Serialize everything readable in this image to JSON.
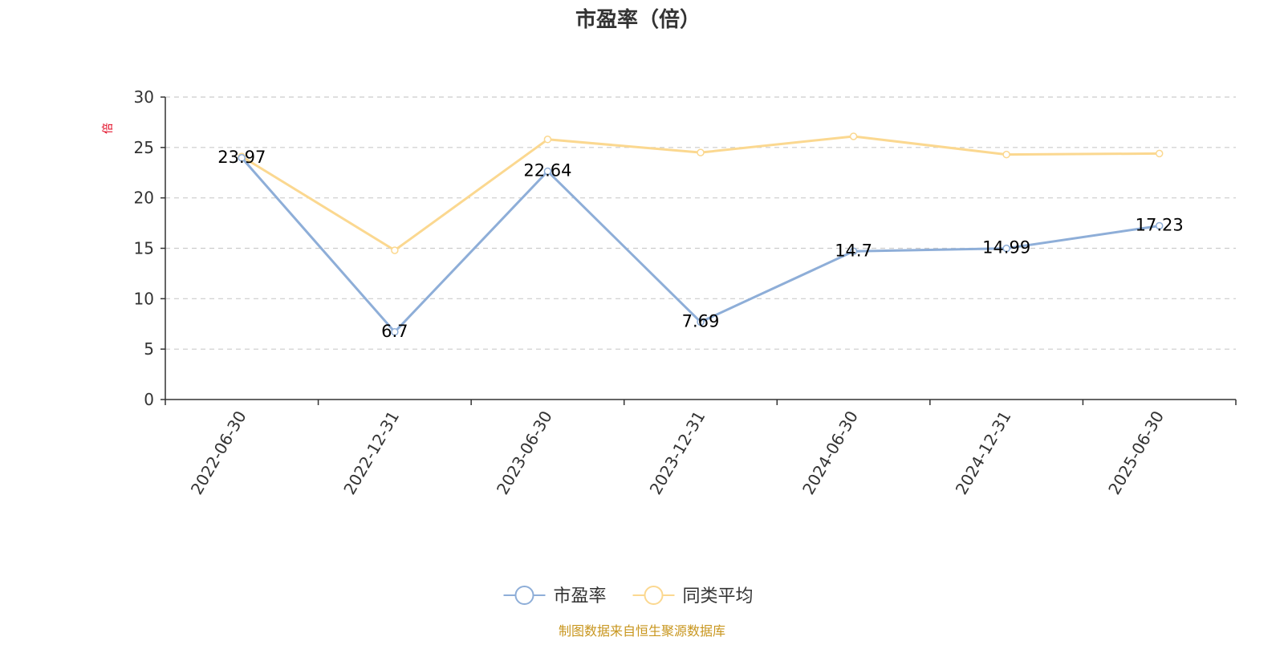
{
  "chart_data": {
    "type": "line",
    "title": "市盈率（倍）",
    "ylabel": "倍",
    "xlabel": "",
    "categories": [
      "2022-06-30",
      "2022-12-31",
      "2023-06-30",
      "2023-12-31",
      "2024-06-30",
      "2024-12-31",
      "2025-06-30"
    ],
    "series": [
      {
        "name": "市盈率",
        "values": [
          23.97,
          6.7,
          22.64,
          7.69,
          14.7,
          14.99,
          17.23
        ],
        "labels": [
          "23.97",
          "6.7",
          "22.64",
          "7.69",
          "14.7",
          "14.99",
          "17.23"
        ],
        "show_labels": true,
        "color": "#8eaed8"
      },
      {
        "name": "同类平均",
        "values": [
          24.1,
          14.8,
          25.8,
          24.5,
          26.1,
          24.3,
          24.4
        ],
        "show_labels": false,
        "color": "#fbd890"
      }
    ],
    "ylim": [
      0,
      30
    ],
    "yticks": [
      "0",
      "5",
      "10",
      "15",
      "20",
      "25",
      "30"
    ],
    "grid": true,
    "legend_position": "bottom-center",
    "source": "制图数据来自恒生聚源数据库",
    "colors": {
      "title": "#333333",
      "axis": "#333333",
      "grid": "#cccccc",
      "unit": "#e0001b",
      "source": "#c8961e"
    }
  }
}
